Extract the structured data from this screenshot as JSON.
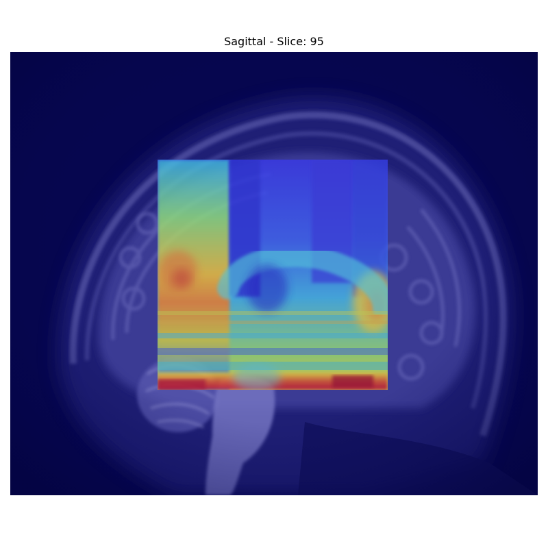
{
  "figure": {
    "title": "Sagittal - Slice: 95",
    "view": "Sagittal",
    "slice": 95
  },
  "image": {
    "subject": "sagittal brain MRI slice with heatmap overlay",
    "background_colormap": "dark navy to lavender (blue-tinted grayscale)",
    "overlay_colormap": "jet",
    "colors": {
      "background_dark": "#05054f",
      "tissue_light": "#7676c4",
      "overlay_high": "#c8102e",
      "overlay_mid": "#f2e03a",
      "overlay_low": "#2a2ee0"
    }
  }
}
